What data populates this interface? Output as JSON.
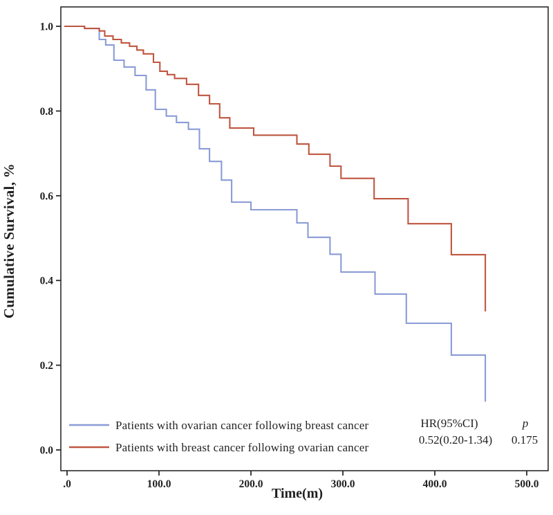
{
  "figure": {
    "background": "#ffffff",
    "axis_color": "#2a2a2a",
    "text_color": "#1f1f1f"
  },
  "chart_data": {
    "type": "line",
    "subtype": "kaplan-meier-step-survival",
    "title": "",
    "xlabel": "Time(m)",
    "ylabel": "Cumulative Survival, %",
    "xlim": [
      0,
      523
    ],
    "ylim": [
      0.0,
      1.04
    ],
    "grid": false,
    "legend_position": "inside-lower-left",
    "x_ticks": {
      "values": [
        0,
        100,
        200,
        300,
        400,
        500
      ],
      "labels": [
        ".0",
        "100.0",
        "200.0",
        "300.0",
        "400.0",
        "500.0"
      ]
    },
    "y_ticks": {
      "values": [
        0.0,
        0.2,
        0.4,
        0.6,
        0.8,
        1.0
      ],
      "labels": [
        "0.0",
        "0.2",
        "0.4",
        "0.6",
        "0.8",
        "1.0"
      ]
    },
    "series": [
      {
        "name": "Patients with ovarian cancer following breast cancer",
        "color": "#8a9bd6",
        "points": [
          [
            0,
            1.0
          ],
          [
            19,
            0.995
          ],
          [
            35,
            0.969
          ],
          [
            42,
            0.956
          ],
          [
            51,
            0.92
          ],
          [
            62,
            0.904
          ],
          [
            74,
            0.884
          ],
          [
            86,
            0.85
          ],
          [
            96,
            0.804
          ],
          [
            108,
            0.788
          ],
          [
            119,
            0.773
          ],
          [
            132,
            0.757
          ],
          [
            144,
            0.711
          ],
          [
            155,
            0.681
          ],
          [
            168,
            0.637
          ],
          [
            179,
            0.585
          ],
          [
            200,
            0.567
          ],
          [
            250,
            0.536
          ],
          [
            262,
            0.502
          ],
          [
            286,
            0.462
          ],
          [
            298,
            0.42
          ],
          [
            335,
            0.368
          ],
          [
            369,
            0.299
          ],
          [
            418,
            0.224
          ],
          [
            455,
            0.114
          ]
        ]
      },
      {
        "name": "Patients with breast cancer following ovarian cancer",
        "color": "#bf5640",
        "points": [
          [
            0,
            1.0
          ],
          [
            19,
            0.995
          ],
          [
            35,
            0.989
          ],
          [
            41,
            0.977
          ],
          [
            50,
            0.969
          ],
          [
            59,
            0.961
          ],
          [
            68,
            0.953
          ],
          [
            76,
            0.944
          ],
          [
            83,
            0.935
          ],
          [
            94,
            0.915
          ],
          [
            101,
            0.894
          ],
          [
            109,
            0.886
          ],
          [
            117,
            0.877
          ],
          [
            130,
            0.863
          ],
          [
            143,
            0.837
          ],
          [
            155,
            0.817
          ],
          [
            166,
            0.784
          ],
          [
            177,
            0.76
          ],
          [
            203,
            0.743
          ],
          [
            250,
            0.722
          ],
          [
            263,
            0.698
          ],
          [
            286,
            0.67
          ],
          [
            298,
            0.641
          ],
          [
            334,
            0.593
          ],
          [
            371,
            0.534
          ],
          [
            418,
            0.461
          ],
          [
            455,
            0.327
          ]
        ]
      }
    ],
    "stats": {
      "hr_header": "HR(95%CI)",
      "hr_value": "0.52(0.20-1.34)",
      "p_header": "p",
      "p_value": "0.175"
    }
  }
}
